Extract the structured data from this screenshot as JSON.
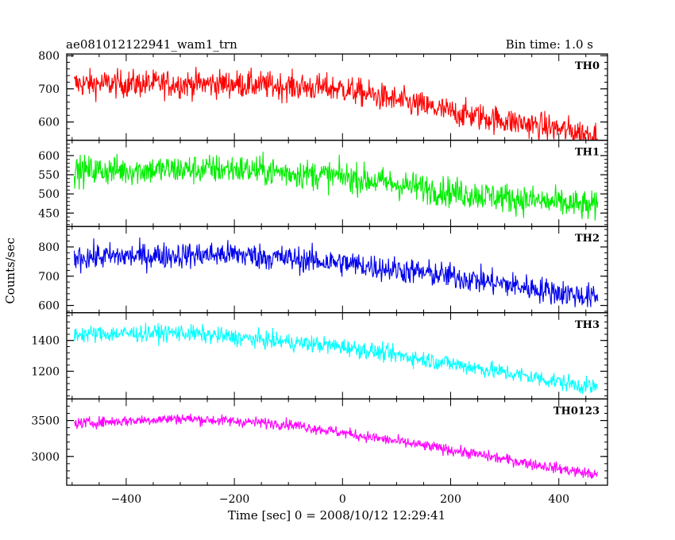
{
  "chart_data": {
    "type": "line",
    "title_left": "ae081012122941_wam1_trn",
    "title_right": "Bin time: 1.0 s",
    "xlabel": "Time [sec] 0 = 2008/10/12 12:29:41",
    "ylabel": "Counts/sec",
    "xlim": [
      -510,
      490
    ],
    "xticks": [
      -400,
      -200,
      0,
      200,
      400
    ],
    "xtick_labels": [
      "−400",
      "−200",
      "0",
      "200",
      "400"
    ],
    "x_start": -496,
    "x_end": 472,
    "grid": false,
    "panels": [
      {
        "name": "TH0",
        "color": "#ff0000",
        "ylim": [
          545,
          805
        ],
        "yticks": [
          600,
          700,
          800
        ],
        "ytick_labels": [
          "600",
          "700",
          "800"
        ],
        "trend_x": [
          -496,
          -200,
          0,
          200,
          472
        ],
        "trend_y": [
          715,
          715,
          700,
          630,
          560
        ],
        "noise": 30
      },
      {
        "name": "TH1",
        "color": "#00ee00",
        "ylim": [
          415,
          640
        ],
        "yticks": [
          450,
          500,
          550,
          600
        ],
        "ytick_labels": [
          "450",
          "500",
          "550",
          "600"
        ],
        "trend_x": [
          -496,
          -200,
          0,
          200,
          472
        ],
        "trend_y": [
          560,
          565,
          545,
          505,
          465
        ],
        "noise": 28
      },
      {
        "name": "TH2",
        "color": "#0000ee",
        "ylim": [
          575,
          870
        ],
        "yticks": [
          600,
          700,
          800
        ],
        "ytick_labels": [
          "600",
          "700",
          "800"
        ],
        "trend_x": [
          -496,
          -200,
          0,
          200,
          472
        ],
        "trend_y": [
          765,
          775,
          745,
          700,
          625
        ],
        "noise": 32
      },
      {
        "name": "TH3",
        "color": "#00ffff",
        "ylim": [
          1020,
          1580
        ],
        "yticks": [
          1200,
          1400
        ],
        "ytick_labels": [
          "1200",
          "1400"
        ],
        "trend_x": [
          -496,
          -300,
          0,
          200,
          472
        ],
        "trend_y": [
          1440,
          1450,
          1360,
          1250,
          1090
        ],
        "noise": 40
      },
      {
        "name": "TH0123",
        "color": "#ff00ff",
        "ylim": [
          2600,
          3800
        ],
        "yticks": [
          3000,
          3500
        ],
        "ytick_labels": [
          "3000",
          "3500"
        ],
        "trend_x": [
          -496,
          -300,
          -100,
          0,
          200,
          472
        ],
        "trend_y": [
          3460,
          3530,
          3450,
          3330,
          3090,
          2740
        ],
        "noise": 55
      }
    ]
  }
}
